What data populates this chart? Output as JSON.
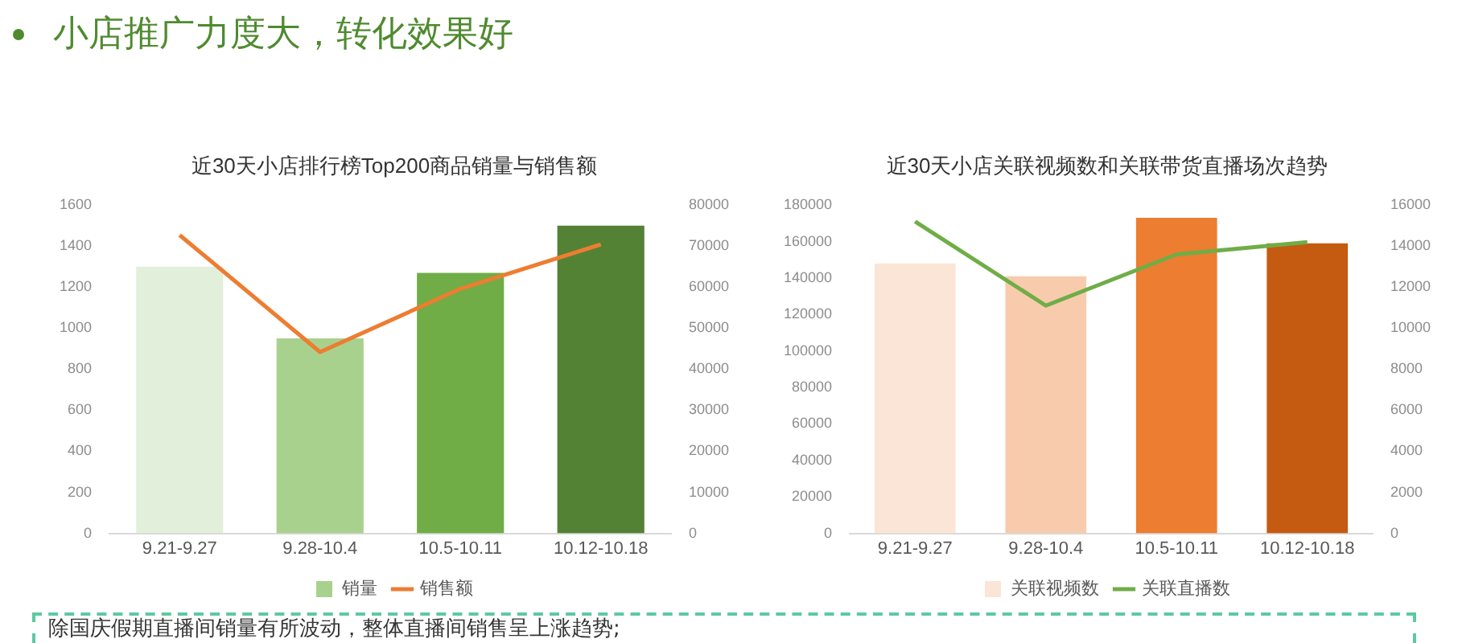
{
  "chart_data": [
    {
      "type": "other",
      "title": "小店推广力度大，转化效果好",
      "annotations": [
        "除国庆假期直播间销量有所波动，整体直播间销售呈上涨趋势;"
      ]
    },
    {
      "type": "bar",
      "title": "近30天小店排行榜Top200商品销量与销售额",
      "categories": [
        "9.21-9.27",
        "9.28-10.4",
        "10.5-10.11",
        "10.12-10.18"
      ],
      "series": [
        {
          "name": "销量",
          "type": "bar",
          "color": "#a9d18e",
          "colors": [
            "#e2efda",
            "#a9d18e",
            "#70ad47",
            "#548235"
          ],
          "values": [
            1300,
            950,
            1270,
            1500
          ]
        },
        {
          "name": "销售额",
          "type": "line",
          "axis": "y2",
          "color": "#ed7d31",
          "values": [
            72700,
            44200,
            59600,
            70400
          ]
        }
      ],
      "ylim": [
        0,
        1600
      ],
      "yticks": [
        0,
        200,
        400,
        600,
        800,
        1000,
        1200,
        1400,
        1600
      ],
      "y2lim": [
        0,
        80000
      ],
      "y2ticks": [
        0,
        10000,
        20000,
        30000,
        40000,
        50000,
        60000,
        70000,
        80000
      ],
      "legend": "bottom",
      "grid": false,
      "marker": "none"
    },
    {
      "type": "bar",
      "title": "近30天小店关联视频数和关联带货直播场次趋势",
      "categories": [
        "9.21-9.27",
        "9.28-10.4",
        "10.5-10.11",
        "10.12-10.18"
      ],
      "series": [
        {
          "name": "关联视频数",
          "type": "bar",
          "color": "#fbe5d6",
          "colors": [
            "#fbe5d6",
            "#f8cbad",
            "#ed7d31",
            "#c55a11"
          ],
          "values": [
            148000,
            141000,
            173000,
            159000
          ]
        },
        {
          "name": "关联直播数",
          "type": "line",
          "axis": "y2",
          "color": "#70ad47",
          "values": [
            15200,
            11100,
            13600,
            14200
          ]
        }
      ],
      "ylim": [
        0,
        180000
      ],
      "yticks": [
        0,
        20000,
        40000,
        60000,
        80000,
        100000,
        120000,
        140000,
        160000,
        180000
      ],
      "y2lim": [
        0,
        16000
      ],
      "y2ticks": [
        0,
        2000,
        4000,
        6000,
        8000,
        10000,
        12000,
        14000,
        16000
      ],
      "legend": "bottom",
      "grid": false,
      "marker": "none"
    }
  ]
}
